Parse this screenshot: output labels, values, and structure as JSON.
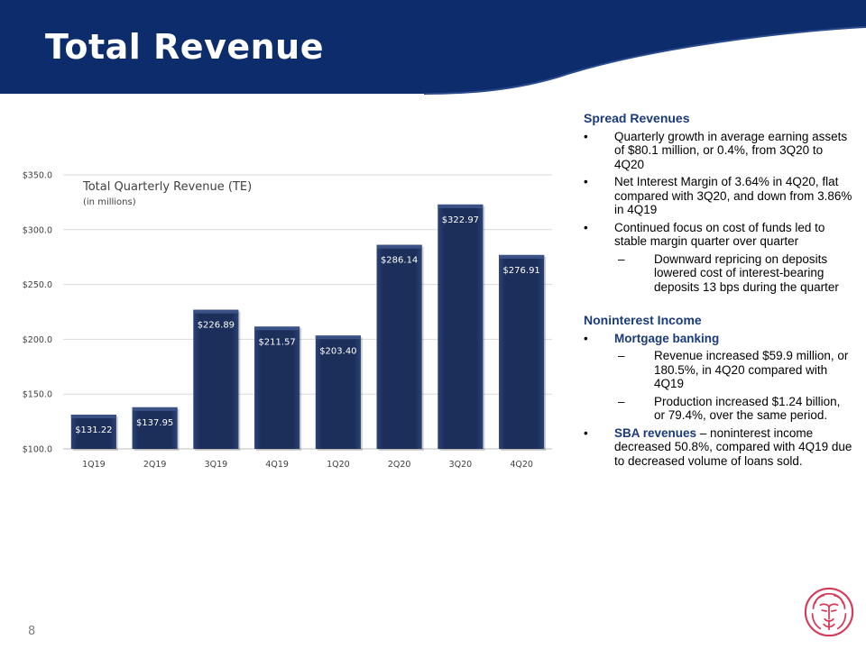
{
  "header": {
    "title": "Total Revenue"
  },
  "colors": {
    "navy": "#0d2c6c",
    "bar": "#1c2e5a",
    "bar_edge": "#3b5287",
    "logo": "#d63a5a"
  },
  "chart_data": {
    "type": "bar",
    "title": "Total Quarterly Revenue (TE)",
    "subtitle": "(in millions)",
    "categories": [
      "1Q19",
      "2Q19",
      "3Q19",
      "4Q19",
      "1Q20",
      "2Q20",
      "3Q20",
      "4Q20"
    ],
    "values": [
      131.22,
      137.95,
      226.89,
      211.57,
      203.4,
      286.14,
      322.97,
      276.91
    ],
    "data_labels": [
      "$131.22",
      "$137.95",
      "$226.89",
      "$211.57",
      "$203.40",
      "$286.14",
      "$322.97",
      "$276.91"
    ],
    "ylim": [
      100,
      350
    ],
    "yticks": [
      100,
      150,
      200,
      250,
      300,
      350
    ],
    "ytick_labels": [
      "$100.0",
      "$150.0",
      "$200.0",
      "$250.0",
      "$300.0",
      "$350.0"
    ],
    "grid": true
  },
  "panel": {
    "spread_heading": "Spread Revenues",
    "spread_b1": "Quarterly growth in average earning assets of $80.1 million, or 0.4%, from 3Q20 to 4Q20",
    "spread_b2": "Net Interest Margin of 3.64% in 4Q20, flat compared with 3Q20, and down from 3.86% in 4Q19",
    "spread_b3": "Continued focus on cost of funds led to stable margin quarter over quarter",
    "spread_b3_sub": "Downward repricing on deposits lowered cost of interest-bearing deposits 13 bps during the quarter",
    "nonint_heading": "Noninterest Income",
    "mortgage_lead": "Mortgage banking",
    "mortgage_sub1": "Revenue increased $59.9 million, or 180.5%, in 4Q20 compared with 4Q19",
    "mortgage_sub2": "Production increased $1.24 billion, or 79.4%, over the same period.",
    "sba_lead": "SBA revenues",
    "sba_rest": " – noninterest income decreased 50.8%, compared with 4Q19 due to decreased volume of loans sold.",
    "bullet_mark": "•",
    "dash_mark": "–"
  },
  "footer": {
    "page_number": "8"
  }
}
